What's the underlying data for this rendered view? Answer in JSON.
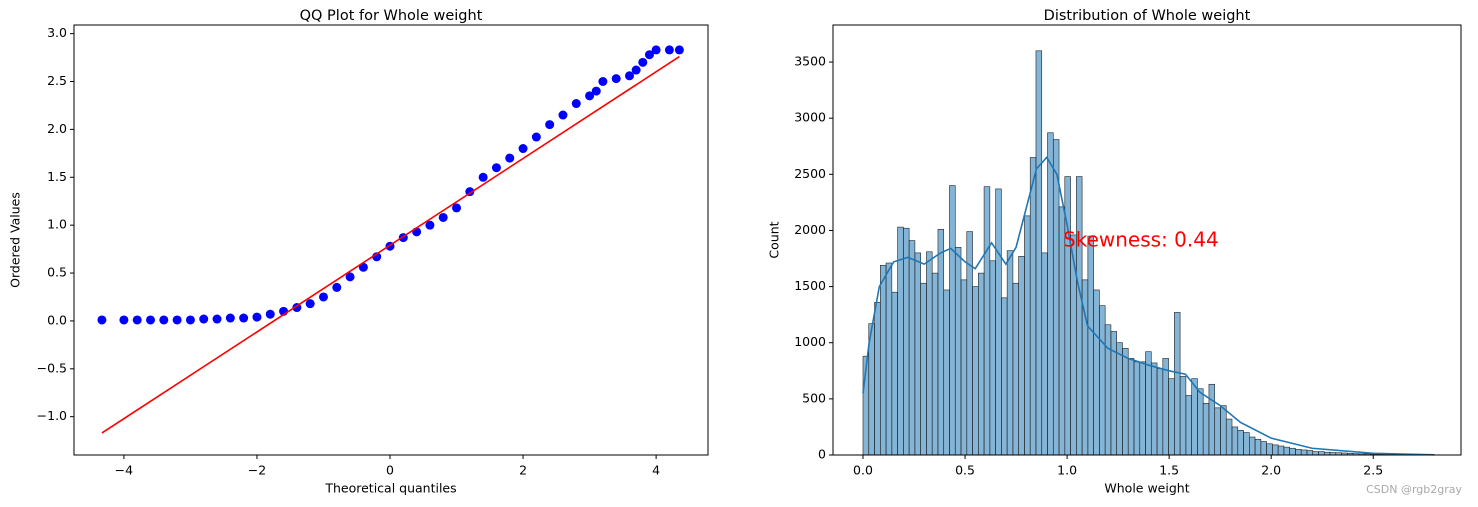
{
  "chart_data": [
    {
      "type": "scatter",
      "title": "QQ Plot for Whole weight",
      "x_label": "Theoretical quantiles",
      "y_label": "Ordered Values",
      "xlim": [
        -4.75,
        4.78
      ],
      "ylim": [
        -1.4,
        3.09
      ],
      "xticks": [
        {
          "value": -4,
          "label": "−4"
        },
        {
          "value": -2,
          "label": "−2"
        },
        0,
        2,
        4
      ],
      "yticks": [
        {
          "value": -1,
          "label": "−1.0"
        },
        {
          "value": -0.5,
          "label": "−0.5"
        },
        {
          "value": 0,
          "label": "0.0"
        },
        {
          "value": 0.5,
          "label": "0.5"
        },
        {
          "value": 1,
          "label": "1.0"
        },
        {
          "value": 1.5,
          "label": "1.5"
        },
        {
          "value": 2,
          "label": "2.0"
        },
        {
          "value": 2.5,
          "label": "2.5"
        },
        {
          "value": 3,
          "label": "3.0"
        }
      ],
      "series": [
        {
          "style": "marker",
          "color": "#0000ff",
          "x": [
            -4.33,
            -4.0,
            -3.8,
            -3.6,
            -3.4,
            -3.2,
            -3.0,
            -2.8,
            -2.6,
            -2.4,
            -2.2,
            -2.0,
            -1.8,
            -1.6,
            -1.4,
            -1.2,
            -1.0,
            -0.8,
            -0.6,
            -0.4,
            -0.2,
            0.0,
            0.2,
            0.4,
            0.6,
            0.8,
            1.0,
            1.2,
            1.4,
            1.6,
            1.8,
            2.0,
            2.2,
            2.4,
            2.6,
            2.8,
            3.0,
            3.1,
            3.2,
            3.4,
            3.6,
            3.7,
            3.8,
            3.9,
            4.0,
            4.2,
            4.35
          ],
          "values": [
            0.01,
            0.01,
            0.01,
            0.01,
            0.01,
            0.01,
            0.01,
            0.02,
            0.02,
            0.03,
            0.03,
            0.04,
            0.07,
            0.1,
            0.14,
            0.18,
            0.25,
            0.35,
            0.46,
            0.56,
            0.67,
            0.78,
            0.87,
            0.93,
            1.0,
            1.08,
            1.18,
            1.35,
            1.5,
            1.6,
            1.7,
            1.8,
            1.92,
            2.05,
            2.15,
            2.27,
            2.35,
            2.4,
            2.5,
            2.53,
            2.56,
            2.62,
            2.7,
            2.78,
            2.83,
            2.83,
            2.83
          ]
        },
        {
          "style": "line",
          "color": "#ff0000",
          "x": [
            -4.33,
            4.35
          ],
          "values": [
            -1.17,
            2.76
          ]
        }
      ]
    },
    {
      "type": "histogram",
      "title": "Distribution of Whole weight",
      "x_label": "Whole weight",
      "y_label": "Count",
      "xlim": [
        -0.147,
        2.93
      ],
      "ylim": [
        0,
        3830
      ],
      "xticks": [
        {
          "value": 0,
          "label": "0.0"
        },
        {
          "value": 0.5,
          "label": "0.5"
        },
        {
          "value": 1,
          "label": "1.0"
        },
        {
          "value": 1.5,
          "label": "1.5"
        },
        {
          "value": 2,
          "label": "2.0"
        },
        {
          "value": 2.5,
          "label": "2.5"
        }
      ],
      "yticks": [
        0,
        500,
        1000,
        1500,
        2000,
        2500,
        3000,
        3500
      ],
      "color": "#1f77b4",
      "bins": [
        0,
        0.02825,
        0.0565,
        0.08475,
        0.113,
        0.14125,
        0.1695,
        0.19775,
        0.226,
        0.25425,
        0.2825,
        0.31075,
        0.339,
        0.36725,
        0.3955,
        0.42375,
        0.452,
        0.48025,
        0.5085,
        0.53675,
        0.565,
        0.59325,
        0.6215,
        0.64975,
        0.678,
        0.70625,
        0.7345,
        0.76275,
        0.791,
        0.81925,
        0.8475,
        0.87575,
        0.904,
        0.93225,
        0.9605,
        0.98875,
        1.017,
        1.04525,
        1.0735,
        1.10175,
        1.13,
        1.15825,
        1.1865,
        1.21475,
        1.243,
        1.27125,
        1.2995,
        1.32775,
        1.356,
        1.38425,
        1.4125,
        1.44075,
        1.469,
        1.49725,
        1.5255,
        1.55375,
        1.582,
        1.61025,
        1.6385,
        1.66675,
        1.695,
        1.72325,
        1.7515,
        1.77975,
        1.808,
        1.83625,
        1.8645,
        1.89275,
        1.921,
        1.94925,
        1.9775,
        2.00575,
        2.034,
        2.06225,
        2.0905,
        2.11875,
        2.147,
        2.17525,
        2.2035,
        2.23175,
        2.26,
        2.28825,
        2.3165,
        2.34475,
        2.373,
        2.40125,
        2.4295,
        2.45775,
        2.486,
        2.51425,
        2.5425,
        2.57075,
        2.599,
        2.62725,
        2.6555,
        2.68375,
        2.712,
        2.74025,
        2.7685,
        2.79675,
        2.825
      ],
      "counts": [
        880,
        1170,
        1360,
        1690,
        1710,
        1450,
        2030,
        2020,
        1910,
        1800,
        1530,
        1810,
        1620,
        2010,
        1470,
        2400,
        1850,
        1560,
        1990,
        1500,
        1620,
        2390,
        1730,
        2370,
        1400,
        1820,
        1530,
        1770,
        2130,
        2650,
        3600,
        1800,
        2870,
        2810,
        2210,
        2480,
        1960,
        2480,
        1560,
        1950,
        1470,
        1330,
        1160,
        1100,
        1000,
        950,
        860,
        830,
        830,
        920,
        820,
        770,
        860,
        680,
        1270,
        700,
        530,
        680,
        590,
        460,
        630,
        420,
        440,
        320,
        250,
        220,
        200,
        160,
        140,
        120,
        100,
        90,
        80,
        70,
        60,
        50,
        45,
        40,
        30,
        30,
        25,
        22,
        20,
        18,
        15,
        12,
        10,
        10,
        8,
        6,
        6,
        5,
        5,
        4,
        3,
        3,
        2,
        2,
        1,
        1
      ],
      "kde": {
        "color": "#1f77b4",
        "x": [
          0,
          0.03,
          0.08,
          0.15,
          0.22,
          0.3,
          0.38,
          0.43,
          0.5,
          0.55,
          0.63,
          0.7,
          0.75,
          0.8,
          0.85,
          0.9,
          0.95,
          1.0,
          1.05,
          1.1,
          1.2,
          1.3,
          1.4,
          1.5,
          1.58,
          1.65,
          1.75,
          1.85,
          2.0,
          2.2,
          2.5,
          2.8
        ],
        "values": [
          550,
          1000,
          1500,
          1720,
          1760,
          1700,
          1800,
          1840,
          1720,
          1660,
          1890,
          1700,
          1850,
          2200,
          2550,
          2650,
          2500,
          2050,
          1550,
          1150,
          950,
          860,
          800,
          750,
          720,
          560,
          440,
          290,
          150,
          60,
          15,
          2
        ]
      },
      "annotation": "Skewness: 0.44",
      "watermark": "CSDN @rgb2gray"
    }
  ]
}
